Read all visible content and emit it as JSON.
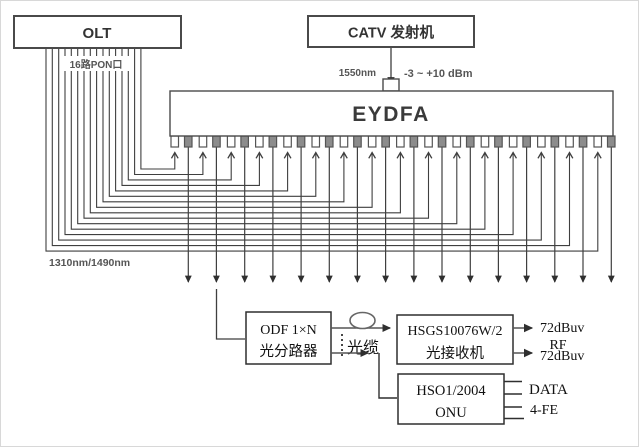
{
  "diagram": {
    "olt": {
      "label": "OLT"
    },
    "catv": {
      "label": "CATV 发射机"
    },
    "eydfa": {
      "label": "EYDFA"
    },
    "pon_ports_label": "16路PON口",
    "port_count": 16,
    "catv_wavelength": "1550nm",
    "catv_power_range": "-3 ~ +10 dBm",
    "pon_wavelengths": "1310nm/1490nm",
    "odf": {
      "line1": "ODF 1×N",
      "line2": "光分路器"
    },
    "cable_label": "光缆",
    "receiver": {
      "line1": "HSGS10076W/2",
      "line2": "光接收机"
    },
    "onu": {
      "line1": "HSO1/2004",
      "line2": "ONU"
    },
    "outputs": {
      "rf_level_top": "72dBuv",
      "rf_label": "RF",
      "rf_level_bottom": "72dBuv",
      "data_label": "DATA",
      "fe_label": "4-FE"
    }
  },
  "colors": {
    "line": "#3f3f3f",
    "box_border": "#4a4a4a",
    "gray_port": "#8c8c8c",
    "text_dark": "#333333",
    "label_gray": "#555555"
  }
}
